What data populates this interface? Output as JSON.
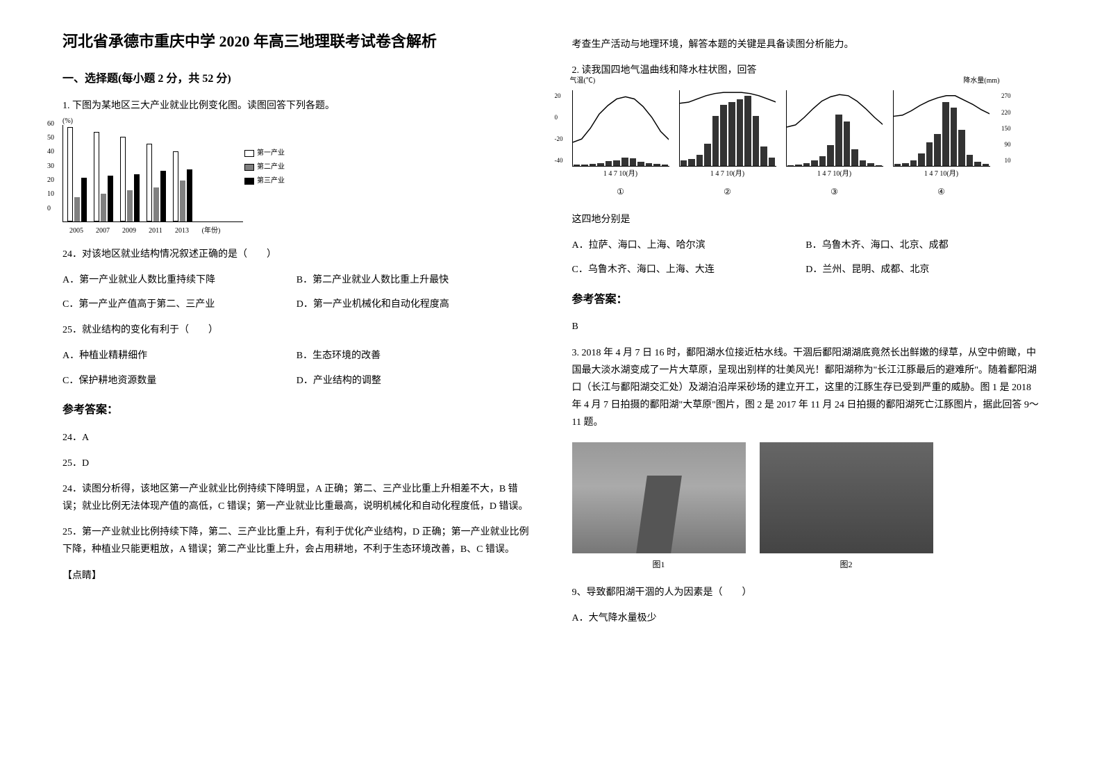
{
  "doc": {
    "title": "河北省承德市重庆中学 2020 年高三地理联考试卷含解析",
    "section1_heading": "一、选择题(每小题 2 分，共 52 分)",
    "q1_stem": "1. 下图为某地区三大产业就业比例变化图。读图回答下列各题。",
    "q24_stem": "24．对该地区就业结构情况叙述正确的是（　　）",
    "q24_opts": {
      "a": "A．第一产业就业人数比重持续下降",
      "b": "B．第二产业就业人数比重上升最快",
      "c": "C．第一产业产值高于第二、三产业",
      "d": "D．第一产业机械化和自动化程度高"
    },
    "q25_stem": "25．就业结构的变化有利于（　　）",
    "q25_opts": {
      "a": "A．种植业精耕细作",
      "b": "B．生态环境的改善",
      "c": "C．保护耕地资源数量",
      "d": "D．产业结构的调整"
    },
    "answer_heading": "参考答案：",
    "ans24": "24．A",
    "ans25": "25．D",
    "exp24": "24．读图分析得，该地区第一产业就业比例持续下降明显，A 正确；第二、三产业比重上升相差不大，B 错误；就业比例无法体现产值的高低，C 错误；第一产业就业比重最高，说明机械化和自动化程度低，D 错误。",
    "exp25": "25．第一产业就业比例持续下降，第二、三产业比重上升，有利于优化产业结构，D 正确；第一产业就业比例下降，种植业只能更粗放，A 错误；第二产业比重上升，会占用耕地，不利于生态环境改善，B、C 错误。",
    "tip_label": "【点睛】",
    "tip_text": "考查生产活动与地理环境，解答本题的关键是具备读图分析能力。",
    "q2_stem": "2. 读我国四地气温曲线和降水柱状图，回答",
    "q2_sub": "这四地分别是",
    "q2_opts": {
      "a": "A．拉萨、海口、上海、哈尔滨",
      "b": "B．乌鲁木齐、海口、北京、成都",
      "c": "C．乌鲁木齐、海口、上海、大连",
      "d": "D．兰州、昆明、成都、北京"
    },
    "q2_ans_heading": "参考答案：",
    "q2_ans": "B",
    "q3_stem": "3. 2018 年 4 月 7 日 16 时，鄱阳湖水位接近枯水线。干涸后鄱阳湖湖底竟然长出鲜嫩的绿草，从空中俯瞰，中国最大淡水湖变成了一片大草原，呈现出别样的壮美风光！鄱阳湖称为\"长江江豚最后的避难所\"。随着鄱阳湖口（长江与鄱阳湖交汇处）及湖泊沿岸采砂场的建立开工，这里的江豚生存已受到严重的威胁。图 1 是 2018 年 4 月 7 日拍摄的鄱阳湖\"大草原\"图片，图 2 是 2017 年 11 月 24 日拍摄的鄱阳湖死亡江豚图片，据此回答 9～11 题。",
    "q9_stem": "9、导致鄱阳湖干涸的人为因素是（　　）",
    "q9_opt_a": "A．大气降水量极少"
  },
  "bar_chart": {
    "y_label": "(%)",
    "y_ticks": [
      60,
      50,
      40,
      30,
      20,
      10,
      0
    ],
    "x_years": [
      "2005",
      "2007",
      "2009",
      "2011",
      "2013"
    ],
    "x_unit": "(年份)",
    "legend": [
      "第一产业",
      "第二产业",
      "第三产业"
    ],
    "series1": [
      58,
      55,
      52,
      48,
      43
    ],
    "series2": [
      15,
      17,
      19,
      21,
      25
    ],
    "series3": [
      27,
      28,
      29,
      31,
      32
    ],
    "colors": {
      "s1": "#ffffff",
      "s2": "#808080",
      "s3": "#000000"
    }
  },
  "climate": {
    "temp_axis_label": "气温(℃)",
    "precip_axis_label": "降水量(mm)",
    "left_ticks": [
      "20",
      "0",
      "-20",
      "-40"
    ],
    "right_ticks": [
      "270",
      "220",
      "150",
      "90",
      "10"
    ],
    "x_markers": [
      "1",
      "4",
      "7",
      "10"
    ],
    "x_unit": "(月)",
    "panels": [
      {
        "num": "①",
        "temp": [
          -18,
          -15,
          -5,
          8,
          16,
          22,
          24,
          22,
          15,
          5,
          -8,
          -16
        ],
        "precip": [
          5,
          6,
          8,
          12,
          18,
          22,
          30,
          28,
          15,
          10,
          8,
          6
        ]
      },
      {
        "num": "②",
        "temp": [
          18,
          19,
          22,
          25,
          27,
          28,
          28,
          28,
          27,
          25,
          22,
          19
        ],
        "precip": [
          20,
          25,
          40,
          80,
          180,
          220,
          230,
          240,
          250,
          180,
          70,
          30
        ]
      },
      {
        "num": "③",
        "temp": [
          -4,
          -2,
          5,
          13,
          20,
          24,
          26,
          25,
          20,
          13,
          5,
          -2
        ],
        "precip": [
          3,
          5,
          10,
          20,
          35,
          75,
          185,
          160,
          60,
          20,
          10,
          3
        ]
      },
      {
        "num": "④",
        "temp": [
          6,
          7,
          11,
          16,
          20,
          23,
          25,
          25,
          21,
          17,
          12,
          8
        ],
        "precip": [
          8,
          12,
          20,
          45,
          85,
          115,
          230,
          210,
          130,
          40,
          15,
          8
        ]
      }
    ]
  },
  "photos": {
    "cap1": "图1",
    "cap2": "图2"
  }
}
